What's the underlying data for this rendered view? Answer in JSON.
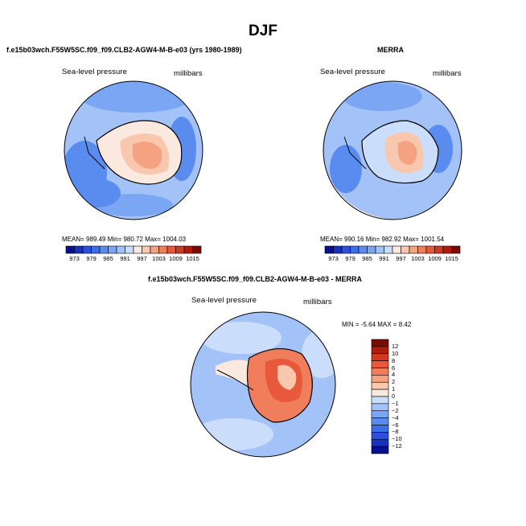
{
  "title": "DJF",
  "panel1": {
    "title": "f.e15b03wch.F55W5SC.f09_f09.CLB2-AGW4-M-B-e03 (yrs 1980-1989)",
    "variable": "Sea-level pressure",
    "units": "millibars",
    "stats": "MEAN= 989.49   Min= 980.72   Max= 1004.03"
  },
  "panel2": {
    "title": "MERRA",
    "variable": "Sea-level pressure",
    "units": "millibars",
    "stats": "MEAN= 990.16   Min= 982.92   Max= 1001.54"
  },
  "panel3": {
    "title": "f.e15b03wch.F55W5SC.f09_f09.CLB2-AGW4-M-B-e03 - MERRA",
    "variable": "Sea-level pressure",
    "units": "millibars",
    "stats": "MIN =   -5.64  MAX =    8.42"
  },
  "colorbar_top": {
    "tick_labels": [
      "973",
      "979",
      "985",
      "991",
      "997",
      "1003",
      "1009",
      "1015"
    ],
    "colors": [
      "#0a0f8c",
      "#1830c0",
      "#2a50e0",
      "#3d6ee6",
      "#5a8cf0",
      "#7ba6f4",
      "#a3c3f8",
      "#cadefb",
      "#fbe9df",
      "#f9c6ae",
      "#f5a283",
      "#f07d5c",
      "#e8583a",
      "#d23a1f",
      "#b01c0c",
      "#7a0a02"
    ]
  },
  "colorbar_diff": {
    "tick_labels": [
      "12",
      "10",
      "8",
      "6",
      "4",
      "2",
      "1",
      "0",
      "−1",
      "−2",
      "−4",
      "−6",
      "−8",
      "−10",
      "−12"
    ],
    "colors": [
      "#7a0a02",
      "#b01c0c",
      "#d23a1f",
      "#e8583a",
      "#f07d5c",
      "#f5a283",
      "#f9c6ae",
      "#fbe9df",
      "#cadefb",
      "#a3c3f8",
      "#7ba6f4",
      "#5a8cf0",
      "#3d6ee6",
      "#2a50e0",
      "#1830c0",
      "#0a0f8c"
    ]
  }
}
